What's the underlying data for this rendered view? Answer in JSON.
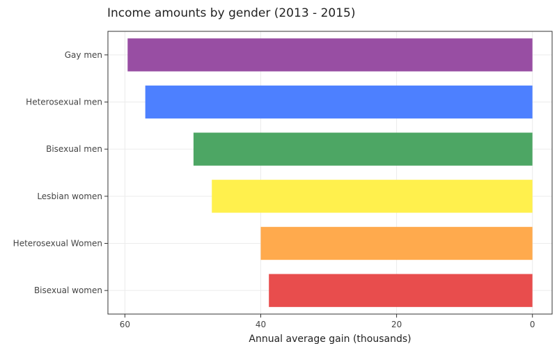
{
  "chart_data": {
    "type": "bar",
    "orientation": "horizontal",
    "title": "Income amounts by gender (2013 - 2015)",
    "xlabel": "Annual average gain (thousands)",
    "ylabel": "",
    "x_reversed": true,
    "xlim": [
      62.5,
      -2.9
    ],
    "x_ticks": [
      60,
      40,
      20,
      0
    ],
    "grid": true,
    "legend": "none",
    "categories": [
      "Gay men",
      "Heterosexual men",
      "Bisexual men",
      "Lesbian women",
      "Heterosexual Women",
      "Bisexual women"
    ],
    "values": [
      59.6,
      57.0,
      49.9,
      47.2,
      40.0,
      38.8
    ],
    "colors": [
      "#984ea3",
      "#4d80ff",
      "#4da664",
      "#fff04d",
      "#ffaa4d",
      "#e84d4d"
    ]
  }
}
